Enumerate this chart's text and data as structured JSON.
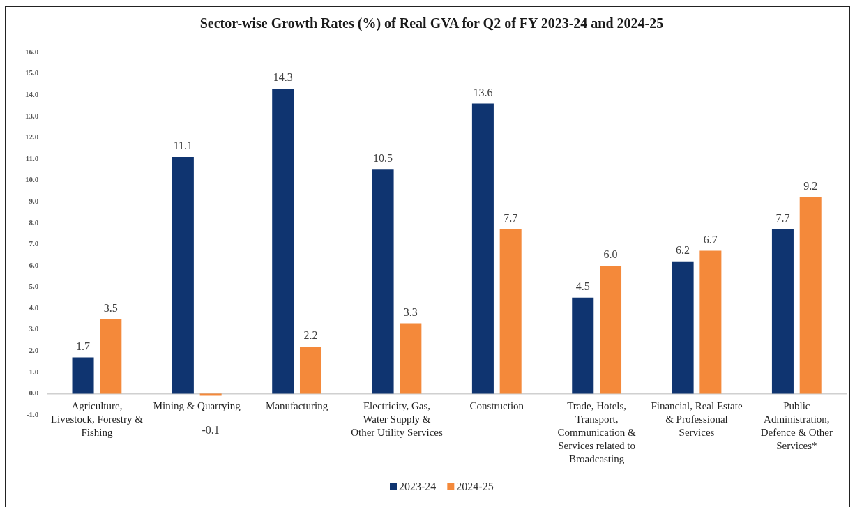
{
  "chart_data": {
    "type": "bar",
    "title": "Sector-wise Growth Rates (%) of Real GVA for Q2 of FY 2023-24 and 2024-25",
    "categories": [
      "Agriculture, Livestock, Forestry & Fishing",
      "Mining & Quarrying",
      "Manufacturing",
      "Electricity, Gas, Water Supply & Other Utility Services",
      "Construction",
      "Trade, Hotels, Transport, Communication & Services related to Broadcasting",
      "Financial, Real Estate & Professional Services",
      "Public Administration, Defence & Other Services*"
    ],
    "series": [
      {
        "name": "2023-24",
        "color": "#0f3470",
        "values": [
          1.7,
          11.1,
          14.3,
          10.5,
          13.6,
          4.5,
          6.2,
          7.7
        ],
        "value_labels": [
          "1.7",
          "11.1",
          "14.3",
          "10.5",
          "13.6",
          "4.5",
          "6.2",
          "7.7"
        ]
      },
      {
        "name": "2024-25",
        "color": "#f4893a",
        "values": [
          3.5,
          -0.1,
          2.2,
          3.3,
          7.7,
          6.0,
          6.7,
          9.2
        ],
        "value_labels": [
          "3.5",
          "-0.1",
          "2.2",
          "3.3",
          "7.7",
          "6.0",
          "6.7",
          "9.2"
        ]
      }
    ],
    "ylim": [
      -1,
      16
    ],
    "yticks": [
      {
        "value": -1,
        "label": "-1.0"
      },
      {
        "value": 0,
        "label": "0.0"
      },
      {
        "value": 1,
        "label": "1.0"
      },
      {
        "value": 2,
        "label": "2.0"
      },
      {
        "value": 3,
        "label": "3.0"
      },
      {
        "value": 4,
        "label": "4.0"
      },
      {
        "value": 5,
        "label": "5.0"
      },
      {
        "value": 6,
        "label": "6.0"
      },
      {
        "value": 7,
        "label": "7.0"
      },
      {
        "value": 8,
        "label": "8.0"
      },
      {
        "value": 9,
        "label": "9.0"
      },
      {
        "value": 10,
        "label": "10.0"
      },
      {
        "value": 11,
        "label": "11.0"
      },
      {
        "value": 12,
        "label": "12.0"
      },
      {
        "value": 13,
        "label": "13.0"
      },
      {
        "value": 14,
        "label": "14.0"
      },
      {
        "value": 15,
        "label": "15.0"
      },
      {
        "value": 16,
        "label": "16.0"
      }
    ],
    "grid": false,
    "legend": "bottom"
  }
}
